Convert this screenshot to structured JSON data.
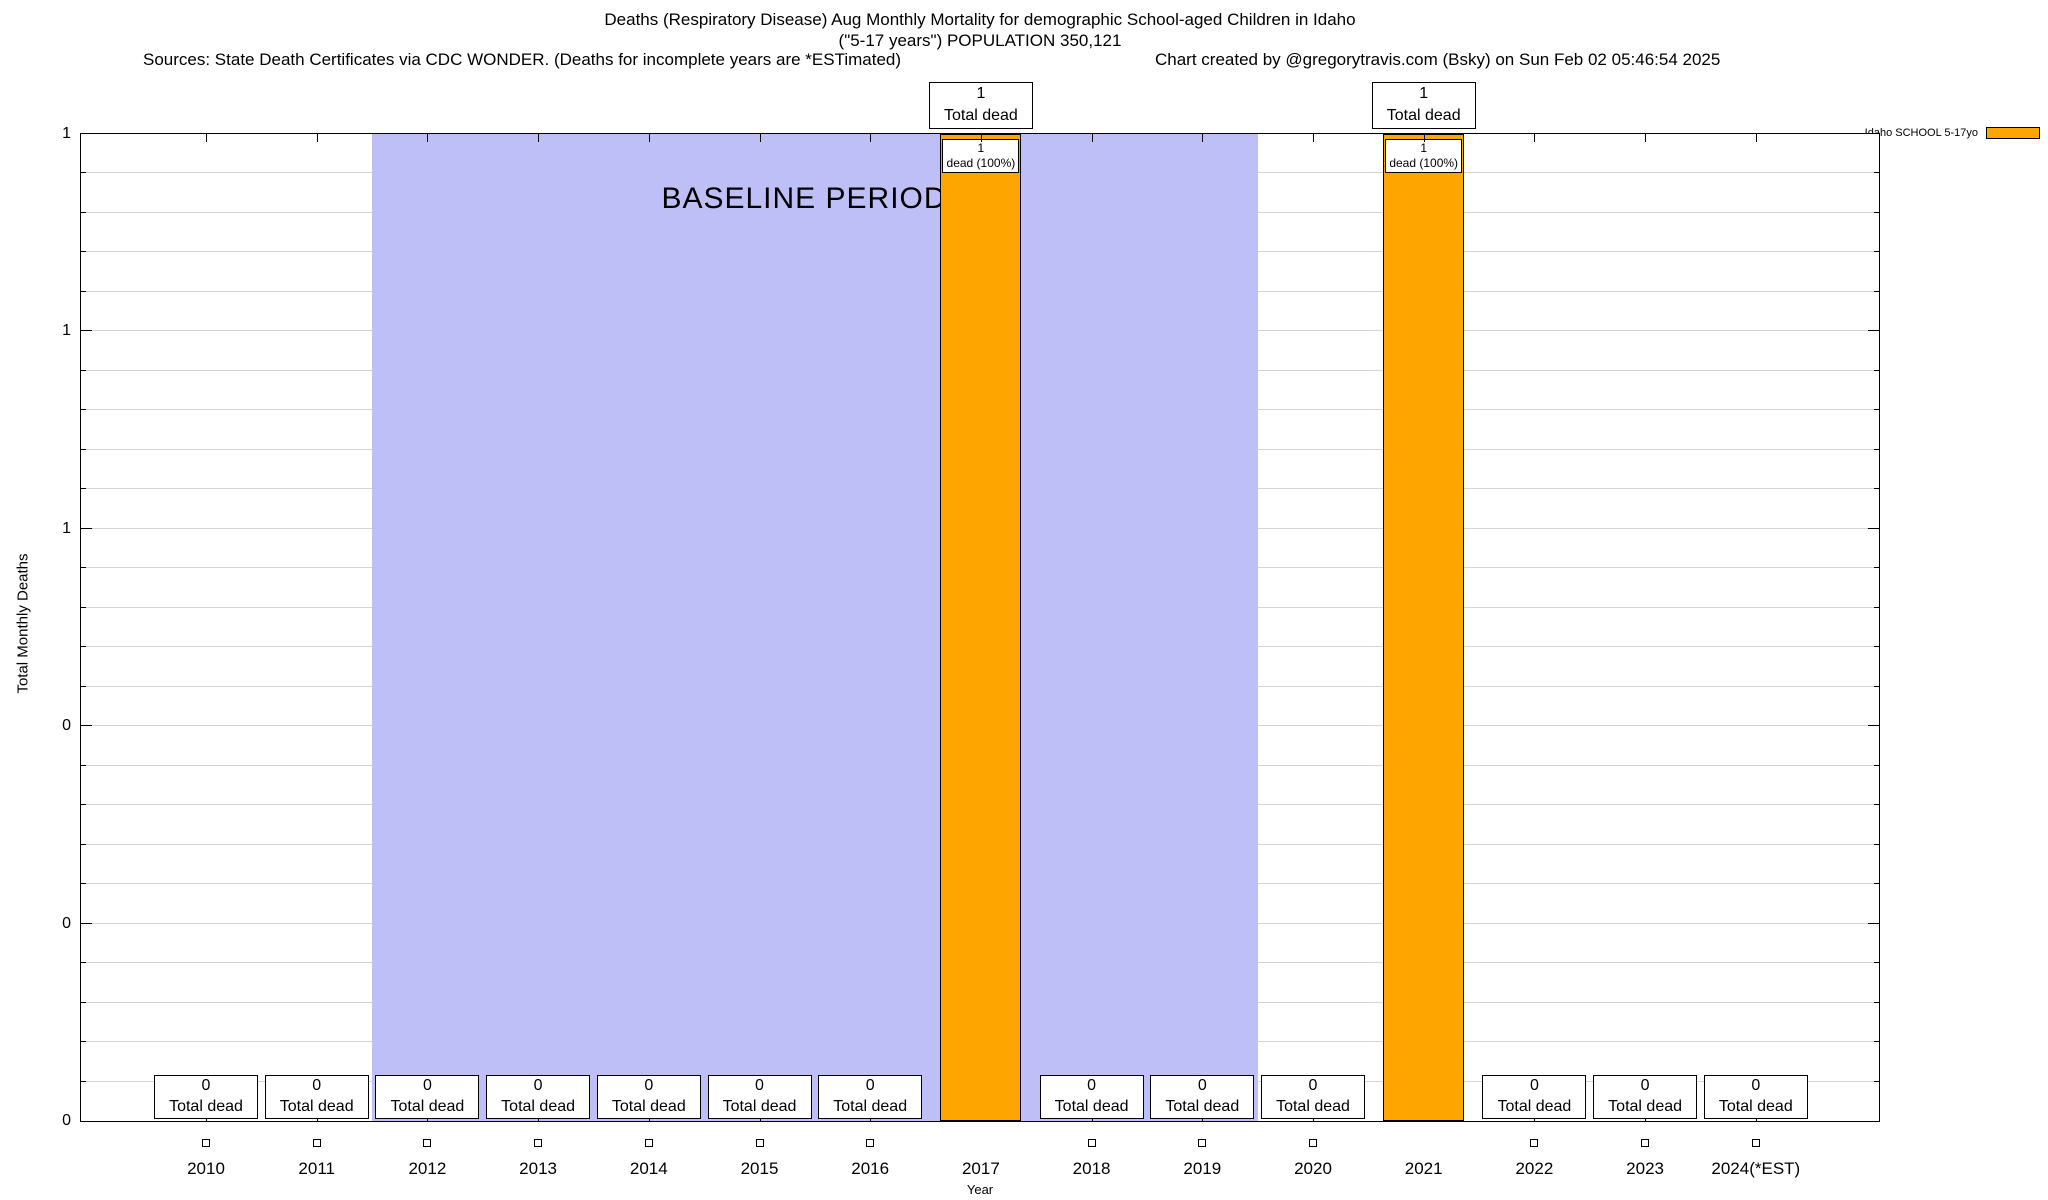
{
  "header": {
    "title_line1": "Deaths (Respiratory Disease) Aug Monthly Mortality for demographic School-aged Children in Idaho",
    "title_line2": "(\"5-17 years\") POPULATION 350,121",
    "sources": "Sources: State Death Certificates via CDC WONDER. (Deaths for incomplete years are *ESTimated)",
    "credit": "Chart created by @gregorytravis.com (Bsky) on Sun Feb 02 05:46:54 2025"
  },
  "legend": {
    "label": "Idaho SCHOOL 5-17yo",
    "color": "#ffa500"
  },
  "chart_data": {
    "type": "bar",
    "title": "Deaths (Respiratory Disease) Aug Monthly Mortality for demographic School-aged Children in Idaho (\"5-17 years\") POPULATION 350,121",
    "xlabel": "Year",
    "ylabel": "Total Monthly Deaths",
    "ylim": [
      0,
      1
    ],
    "grid": true,
    "legend_position": "top-right-outside",
    "ytick_values": [
      0,
      0.2,
      0.4,
      0.6,
      0.8,
      1
    ],
    "ytick_labels": [
      "0",
      "0",
      "0",
      "1",
      "1",
      "1"
    ],
    "minor_grid_interval": 0.04,
    "categories": [
      "2010",
      "2011",
      "2012",
      "2013",
      "2014",
      "2015",
      "2016",
      "2017",
      "2018",
      "2019",
      "2020",
      "2021",
      "2022",
      "2023",
      "2024(*EST)"
    ],
    "values": [
      0,
      0,
      0,
      0,
      0,
      0,
      0,
      1,
      0,
      0,
      0,
      1,
      0,
      0,
      0
    ],
    "bar_color": "#ffa500",
    "baseline_band": {
      "label": "BASELINE PERIOD",
      "color": "#bfbff7",
      "x_start_year": 2011.5,
      "x_end_year": 2019.5
    },
    "annotations": {
      "zero_box_value": "0",
      "zero_box_label": "Total dead",
      "bar_top_box_value": "1",
      "bar_top_box_label": "Total dead",
      "bar_inner_value": "1",
      "bar_inner_label": "dead (100%)"
    }
  }
}
